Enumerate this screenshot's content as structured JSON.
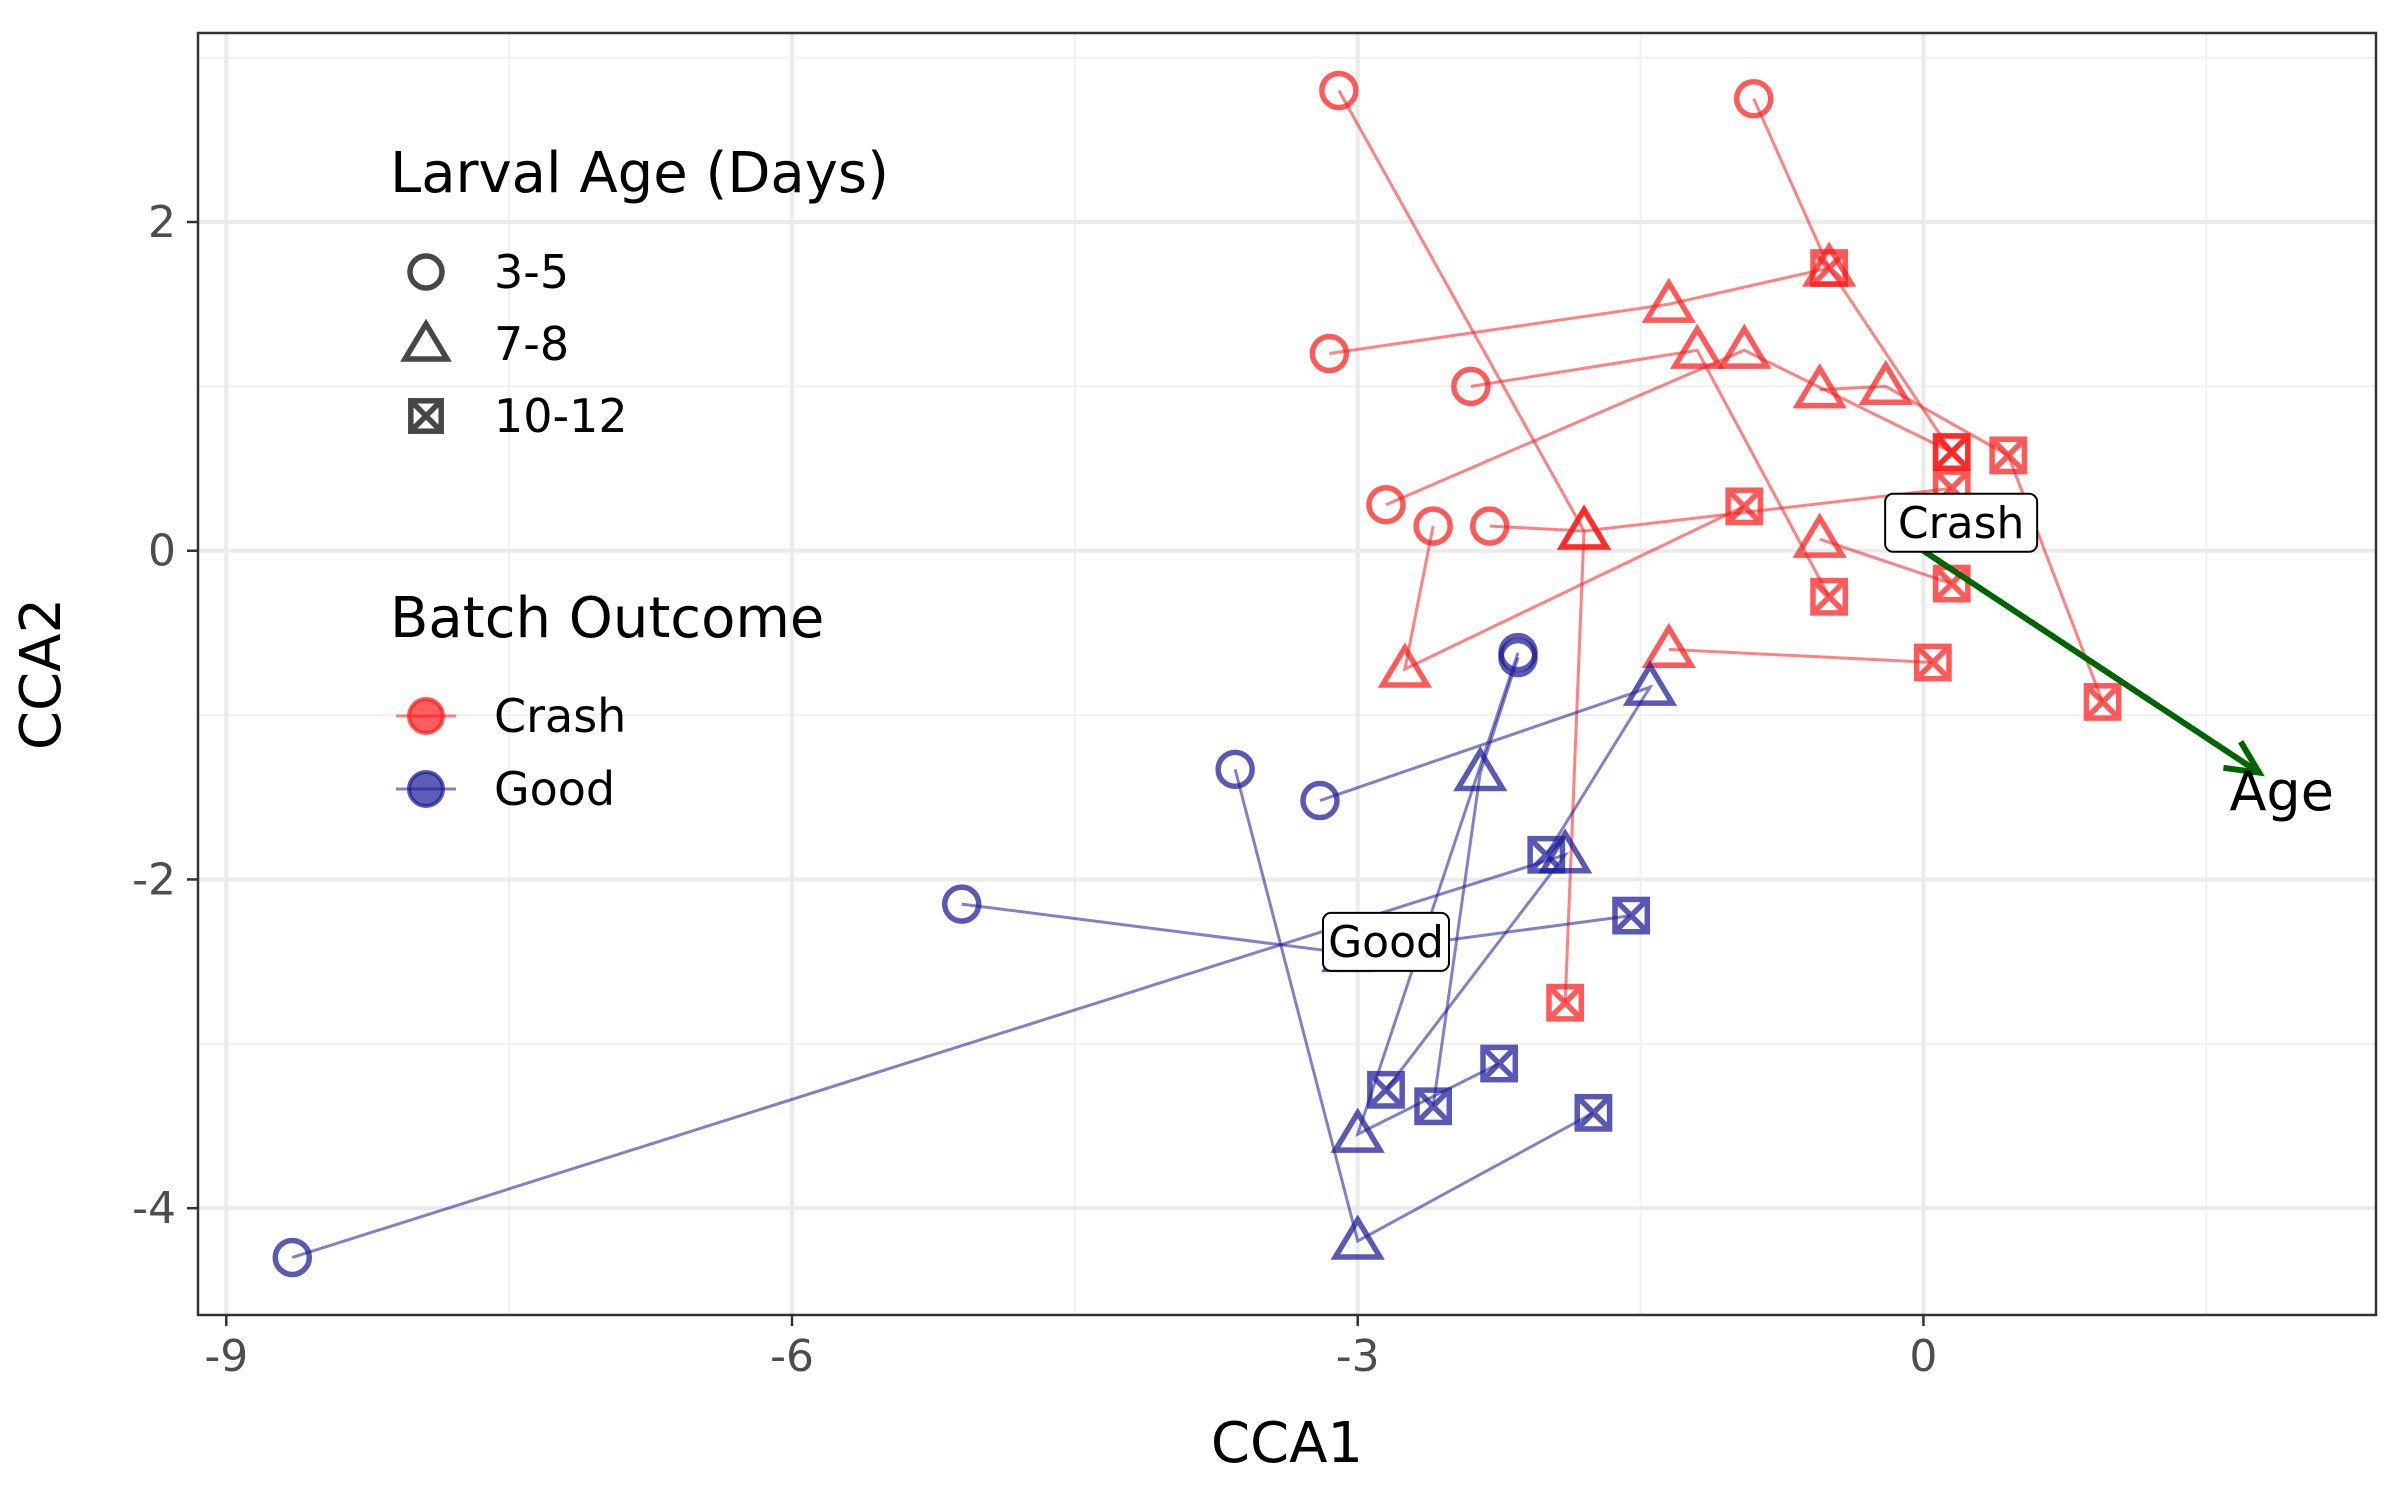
{
  "chart_data": {
    "type": "scatter",
    "xlabel": "CCA1",
    "ylabel": "CCA2",
    "xlim": [
      -9.15,
      2.4
    ],
    "ylim": [
      -4.65,
      3.15
    ],
    "x_ticks": [
      -9,
      -6,
      -3,
      0
    ],
    "x_tick_labels": [
      "-9",
      "-6",
      "-3",
      "0"
    ],
    "y_ticks": [
      -4,
      -2,
      0,
      2
    ],
    "y_tick_labels": [
      "-4",
      "-2",
      "0",
      "2"
    ],
    "grid": true,
    "legend_position": "top-left inside",
    "legends": [
      {
        "title": "Larval Age (Days)",
        "entries": [
          {
            "label": "3-5",
            "shape": "circle"
          },
          {
            "label": "7-8",
            "shape": "triangle"
          },
          {
            "label": "10-12",
            "shape": "boxed-x"
          }
        ]
      },
      {
        "title": "Batch Outcome",
        "entries": [
          {
            "label": "Crash",
            "color": "#ff1a1a"
          },
          {
            "label": "Good",
            "color": "#1a1a99"
          }
        ]
      }
    ],
    "colors": {
      "Crash": "#ff1a1a",
      "Good": "#1a1a99",
      "arrow": "#006400"
    },
    "series": [
      {
        "group": "Crash",
        "points": [
          {
            "x": -3.1,
            "y": 2.8,
            "age": "3-5"
          },
          {
            "x": -1.8,
            "y": 0.12,
            "age": "7-8"
          },
          {
            "x": -1.9,
            "y": -2.75,
            "age": "10-12"
          }
        ]
      },
      {
        "group": "Crash",
        "points": [
          {
            "x": -0.9,
            "y": 2.75,
            "age": "3-5"
          },
          {
            "x": -0.5,
            "y": 1.72,
            "age": "7-8"
          },
          {
            "x": 0.15,
            "y": 0.6,
            "age": "10-12"
          }
        ]
      },
      {
        "group": "Crash",
        "points": [
          {
            "x": -3.15,
            "y": 1.2,
            "age": "3-5"
          },
          {
            "x": -1.35,
            "y": 1.5,
            "age": "7-8"
          },
          {
            "x": -0.5,
            "y": 1.72,
            "age": "10-12"
          }
        ]
      },
      {
        "group": "Crash",
        "points": [
          {
            "x": -2.4,
            "y": 1.0,
            "age": "3-5"
          },
          {
            "x": -1.2,
            "y": 1.22,
            "age": "7-8"
          },
          {
            "x": -0.5,
            "y": -0.28,
            "age": "10-12"
          }
        ]
      },
      {
        "group": "Crash",
        "points": [
          {
            "x": -2.85,
            "y": 0.28,
            "age": "3-5"
          },
          {
            "x": -0.95,
            "y": 1.22,
            "age": "7-8"
          },
          {
            "x": 0.15,
            "y": 0.6,
            "age": "10-12"
          }
        ]
      },
      {
        "group": "Crash",
        "points": [
          {
            "x": -2.6,
            "y": 0.15,
            "age": "3-5"
          },
          {
            "x": -2.75,
            "y": -0.72,
            "age": "7-8"
          },
          {
            "x": -0.95,
            "y": 0.27,
            "age": "10-12"
          }
        ]
      },
      {
        "group": "Crash",
        "points": [
          {
            "x": -2.3,
            "y": 0.15,
            "age": "3-5"
          },
          {
            "x": -1.8,
            "y": 0.12,
            "age": "7-8"
          },
          {
            "x": 0.15,
            "y": 0.38,
            "age": "10-12"
          }
        ]
      },
      {
        "group": "Crash",
        "points": [
          {
            "x": -0.55,
            "y": 0.07,
            "age": "7-8"
          },
          {
            "x": 0.15,
            "y": -0.2,
            "age": "10-12"
          }
        ]
      },
      {
        "group": "Crash",
        "points": [
          {
            "x": -1.35,
            "y": -0.6,
            "age": "7-8"
          },
          {
            "x": 0.05,
            "y": -0.68,
            "age": "10-12"
          }
        ]
      },
      {
        "group": "Crash",
        "points": [
          {
            "x": -0.55,
            "y": 0.98,
            "age": "7-8"
          },
          {
            "x": -0.2,
            "y": 1.0,
            "age": "7-8"
          },
          {
            "x": 0.45,
            "y": 0.58,
            "age": "10-12"
          },
          {
            "x": 0.95,
            "y": -0.92,
            "age": "10-12"
          }
        ]
      },
      {
        "group": "Good",
        "points": [
          {
            "x": -8.65,
            "y": -4.3,
            "age": "3-5"
          },
          {
            "x": -1.9,
            "y": -1.85,
            "age": "7-8"
          },
          {
            "x": -2.85,
            "y": -3.28,
            "age": "10-12"
          }
        ]
      },
      {
        "group": "Good",
        "points": [
          {
            "x": -5.1,
            "y": -2.15,
            "age": "3-5"
          },
          {
            "x": -3.05,
            "y": -2.45,
            "age": "7-8"
          },
          {
            "x": -1.55,
            "y": -2.22,
            "age": "10-12"
          }
        ]
      },
      {
        "group": "Good",
        "points": [
          {
            "x": -3.65,
            "y": -1.33,
            "age": "3-5"
          },
          {
            "x": -3.0,
            "y": -4.2,
            "age": "7-8"
          },
          {
            "x": -1.75,
            "y": -3.42,
            "age": "10-12"
          }
        ]
      },
      {
        "group": "Good",
        "points": [
          {
            "x": -3.2,
            "y": -1.52,
            "age": "3-5"
          },
          {
            "x": -1.45,
            "y": -0.83,
            "age": "7-8"
          },
          {
            "x": -2.0,
            "y": -1.85,
            "age": "10-12"
          }
        ]
      },
      {
        "group": "Good",
        "points": [
          {
            "x": -2.15,
            "y": -0.65,
            "age": "3-5"
          },
          {
            "x": -2.35,
            "y": -1.35,
            "age": "7-8"
          },
          {
            "x": -2.6,
            "y": -3.38,
            "age": "10-12"
          }
        ]
      },
      {
        "group": "Good",
        "points": [
          {
            "x": -2.15,
            "y": -0.62,
            "age": "3-5"
          },
          {
            "x": -3.0,
            "y": -3.55,
            "age": "7-8"
          },
          {
            "x": -2.25,
            "y": -3.12,
            "age": "10-12"
          }
        ]
      }
    ],
    "annotations": [
      {
        "label": "Crash",
        "x": 0.2,
        "y": 0.17,
        "kind": "boxed-label"
      },
      {
        "label": "Good",
        "x": -2.85,
        "y": -2.38,
        "kind": "boxed-label"
      }
    ],
    "arrow": {
      "label": "Age",
      "from": [
        0.0,
        0.0
      ],
      "to": [
        1.78,
        -1.35
      ],
      "label_at": [
        1.9,
        -1.48
      ]
    }
  }
}
